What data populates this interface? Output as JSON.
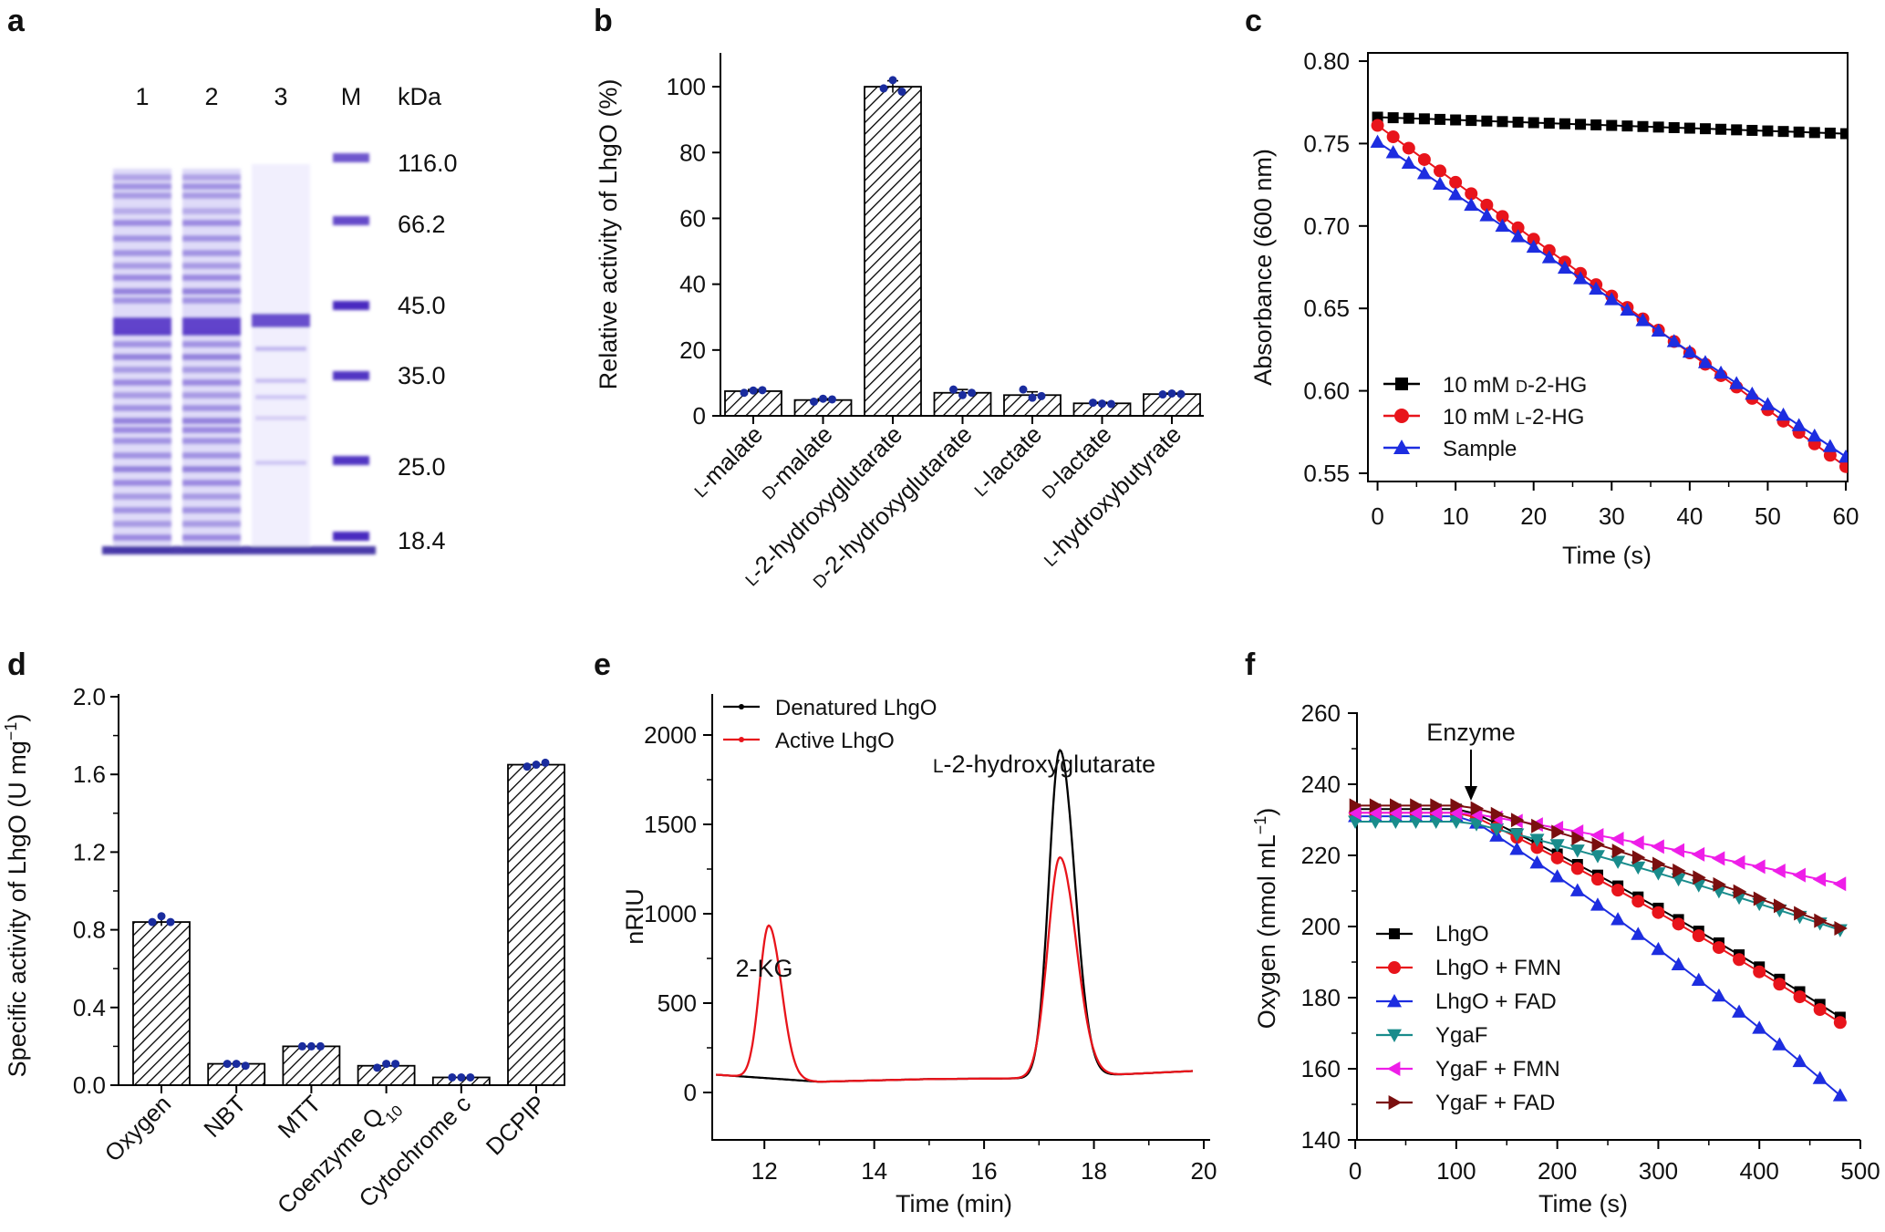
{
  "panel_labels": [
    "a",
    "b",
    "c",
    "d",
    "e",
    "f"
  ],
  "chart_data": [
    {
      "panel": "a",
      "type": "gel",
      "lane_labels": [
        "1",
        "2",
        "3",
        "M"
      ],
      "unit_label": "kDa",
      "marker_sizes": [
        "116.0",
        "66.2",
        "45.0",
        "35.0",
        "25.0",
        "18.4"
      ]
    },
    {
      "panel": "b",
      "type": "bar",
      "ylabel": "Relative activity of LhgO (%)",
      "ylim": [
        0,
        110
      ],
      "yticks": [
        "0",
        "20",
        "40",
        "60",
        "80",
        "100"
      ],
      "categories": [
        "L-malate",
        "D-malate",
        "L-2-hydroxyglutarate",
        "D-2-hydroxyglutarate",
        "L-lactate",
        "D-lactate",
        "L-hydroxybutyrate"
      ],
      "values": [
        7.5,
        4.8,
        100,
        7.0,
        6.3,
        3.8,
        6.6
      ],
      "errors": [
        0.5,
        0.4,
        1.8,
        1.0,
        1.0,
        0.3,
        0.3
      ],
      "points": [
        [
          7.0,
          7.7,
          7.8
        ],
        [
          4.3,
          5.2,
          5.0
        ],
        [
          99.5,
          102.0,
          98.5
        ],
        [
          8.0,
          6.3,
          7.0
        ],
        [
          8.0,
          5.5,
          6.0
        ],
        [
          4.0,
          3.7,
          3.6
        ],
        [
          6.5,
          6.8,
          6.6
        ]
      ]
    },
    {
      "panel": "c",
      "type": "line",
      "xlabel": "Time (s)",
      "ylabel": "Absorbance (600 nm)",
      "xlim": [
        -1,
        60
      ],
      "ylim": [
        0.545,
        0.805
      ],
      "xticks": [
        "0",
        "10",
        "20",
        "30",
        "40",
        "50",
        "60"
      ],
      "yticks": [
        "0.55",
        "0.60",
        "0.65",
        "0.70",
        "0.75",
        "0.80"
      ],
      "series": [
        {
          "name": "10 mM D-2-HG",
          "color": "#000000",
          "marker": "square",
          "x_start": 0,
          "x_step": 2,
          "y_start": 0.766,
          "y_end": 0.756
        },
        {
          "name": "10 mM L-2-HG",
          "color": "#e8141b",
          "marker": "circle",
          "x_start": 0,
          "x_step": 2,
          "y_start": 0.761,
          "y_end": 0.554
        },
        {
          "name": "Sample",
          "color": "#1d2de0",
          "marker": "triangle-up",
          "x_start": 0,
          "x_step": 2,
          "y_start": 0.751,
          "y_end": 0.56
        }
      ]
    },
    {
      "panel": "d",
      "type": "bar",
      "ylabel": "Specific activity of LhgO (U mg⁻¹)",
      "ylim": [
        0,
        2.0
      ],
      "yticks": [
        "0.0",
        "0.4",
        "0.8",
        "1.2",
        "1.6",
        "2.0"
      ],
      "categories": [
        "Oxygen",
        "NBT",
        "MTT",
        "Coenzyme Q10",
        "Cytochrome c",
        "DCPIP"
      ],
      "values": [
        0.84,
        0.11,
        0.2,
        0.1,
        0.04,
        1.65
      ],
      "errors": [
        0.02,
        0.01,
        0.01,
        0.01,
        0.005,
        0.01
      ],
      "points": [
        [
          0.84,
          0.87,
          0.84
        ],
        [
          0.11,
          0.11,
          0.1
        ],
        [
          0.2,
          0.2,
          0.2
        ],
        [
          0.09,
          0.11,
          0.11
        ],
        [
          0.04,
          0.04,
          0.04
        ],
        [
          1.64,
          1.65,
          1.66
        ]
      ]
    },
    {
      "panel": "e",
      "type": "line",
      "xlabel": "Time (min)",
      "ylabel": "nRIU",
      "xlim": [
        11.1,
        20
      ],
      "ylim": [
        -250,
        2250
      ],
      "xticks": [
        "12",
        "14",
        "16",
        "18",
        "20"
      ],
      "yticks": [
        "0",
        "500",
        "1000",
        "1500",
        "2000"
      ],
      "series": [
        {
          "name": "Denatured LhgO",
          "color": "#000000",
          "baseline": [
            100,
            60,
            75,
            80,
            120
          ],
          "peaks": [
            {
              "x": 17.38,
              "height": 1830,
              "width": 0.2
            }
          ]
        },
        {
          "name": "Active LhgO",
          "color": "#e8141b",
          "baseline": [
            100,
            60,
            75,
            80,
            120
          ],
          "peaks": [
            {
              "x": 12.08,
              "height": 855,
              "width": 0.17
            },
            {
              "x": 17.38,
              "height": 1230,
              "width": 0.22
            }
          ]
        }
      ],
      "annotations": [
        "2-KG",
        "L-2-hydroxyglutarate"
      ]
    },
    {
      "panel": "f",
      "type": "line",
      "xlabel": "Time (s)",
      "ylabel": "Oxygen (nmol mL⁻¹)",
      "xlim": [
        -10,
        500
      ],
      "ylim": [
        140,
        260
      ],
      "xticks": [
        "0",
        "100",
        "200",
        "300",
        "400",
        "500"
      ],
      "yticks": [
        "140",
        "160",
        "180",
        "200",
        "220",
        "240",
        "260"
      ],
      "arrow_label": "Enzyme",
      "arrow_x": 110,
      "series": [
        {
          "name": "LhgO",
          "color": "#000000",
          "marker": "square",
          "x_end": 480,
          "y_start": 233,
          "y_end": 174.5
        },
        {
          "name": "LhgO + FMN",
          "color": "#e8141b",
          "marker": "circle",
          "x_end": 480,
          "y_start": 232,
          "y_end": 173
        },
        {
          "name": "LhgO + FAD",
          "color": "#1d2de0",
          "marker": "triangle-up",
          "x_end": 480,
          "y_start": 231,
          "y_end": 152.5
        },
        {
          "name": "YgaF",
          "color": "#198c8c",
          "marker": "triangle-down",
          "x_end": 480,
          "y_start": 229.5,
          "y_end": 199
        },
        {
          "name": "YgaF + FMN",
          "color": "#ee1ee8",
          "marker": "triangle-left",
          "x_end": 480,
          "y_start": 232,
          "y_end": 212
        },
        {
          "name": "YgaF + FAD",
          "color": "#7a0f0f",
          "marker": "triangle-right",
          "x_end": 480,
          "y_start": 234,
          "y_end": 199.5
        }
      ]
    }
  ]
}
